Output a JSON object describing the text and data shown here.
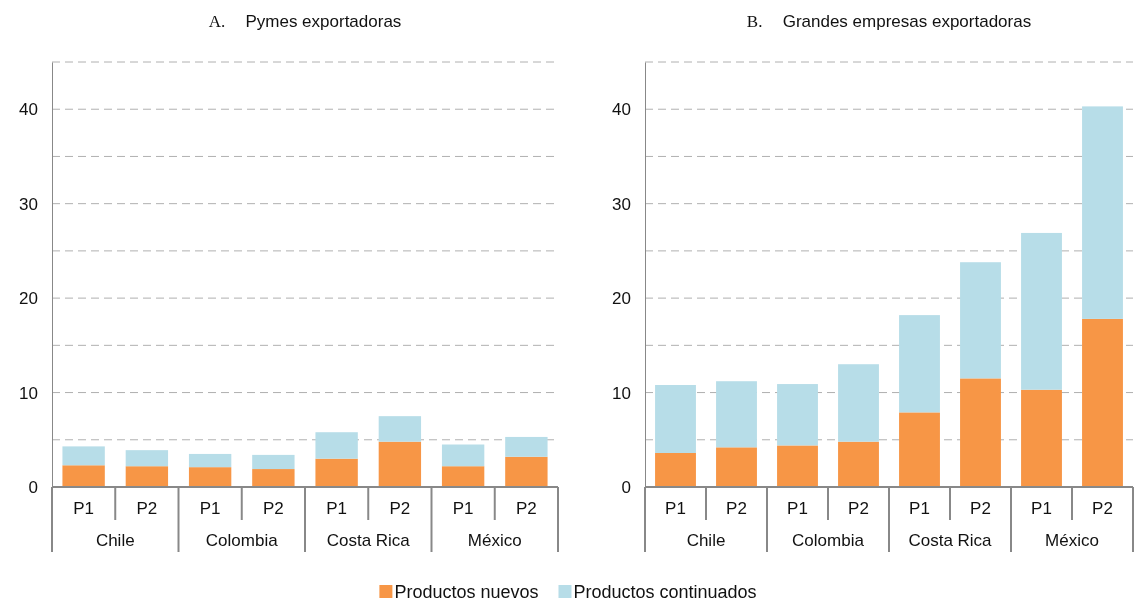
{
  "chart_data": [
    {
      "type": "bar",
      "title": "A. Pymes exportadoras",
      "stacked": true,
      "grid": "y",
      "categories": [
        "P1",
        "P2",
        "P1",
        "P2",
        "P1",
        "P2",
        "P1",
        "P2"
      ],
      "annotations": [
        "Chile",
        "Colombia",
        "Costa Rica",
        "México"
      ],
      "series": [
        {
          "color": "#f79646",
          "values": [
            2.3,
            2.2,
            2.1,
            1.9,
            3.0,
            4.8,
            2.2,
            3.2
          ]
        },
        {
          "color": "#b7dde8",
          "values": [
            2.0,
            1.7,
            1.4,
            1.5,
            2.8,
            2.7,
            2.3,
            2.1
          ]
        }
      ],
      "ylim": [
        0,
        45
      ],
      "yticks": [
        0,
        {
          "value": 5,
          "label": null
        },
        10,
        {
          "value": 15,
          "label": null
        },
        20,
        {
          "value": 25,
          "label": null
        },
        30,
        {
          "value": 35,
          "label": null
        },
        40,
        {
          "value": 45,
          "label": null
        }
      ]
    },
    {
      "type": "bar",
      "title": "B. Grandes empresas exportadoras",
      "stacked": true,
      "grid": "y",
      "legend": "bottom",
      "categories": [
        "P1",
        "P2",
        "P1",
        "P2",
        "P1",
        "P2",
        "P1",
        "P2"
      ],
      "annotations": [
        "Chile",
        "Colombia",
        "Costa Rica",
        "México"
      ],
      "series": [
        {
          "name": "Productos nuevos",
          "color": "#f79646",
          "values": [
            3.6,
            4.2,
            4.4,
            4.8,
            7.9,
            11.5,
            10.3,
            17.8
          ]
        },
        {
          "name": "Productos continuados",
          "color": "#b7dde8",
          "values": [
            7.2,
            7.0,
            6.5,
            8.2,
            10.3,
            12.3,
            16.6,
            22.5
          ]
        }
      ],
      "ylim": [
        0,
        45
      ],
      "yticks": [
        0,
        {
          "value": 5,
          "label": null
        },
        10,
        {
          "value": 15,
          "label": null
        },
        20,
        {
          "value": 25,
          "label": null
        },
        30,
        {
          "value": 35,
          "label": null
        },
        40,
        {
          "value": 45,
          "label": null
        }
      ]
    }
  ]
}
